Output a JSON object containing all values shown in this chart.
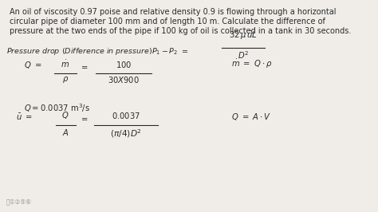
{
  "bg_color": "#f0ede8",
  "text_color": "#2a2a2a",
  "figsize": [
    4.74,
    2.66
  ],
  "dpi": 100,
  "para_line1": "An oil of viscosity 0.97 poise and relative density 0.9 is flowing through a horizontal",
  "para_line2": "circular pipe of diameter 100 mm and of length 10 m. Calculate the difference of",
  "para_line3": "pressure at the two ends of the pipe if 100 kg of oil is collected in a tank in 30 seconds.",
  "pressure_label": "Pressure drop (Difference in pressure)",
  "fs_para": 7.0,
  "fs_formula": 7.2,
  "fs_italic": 6.8
}
